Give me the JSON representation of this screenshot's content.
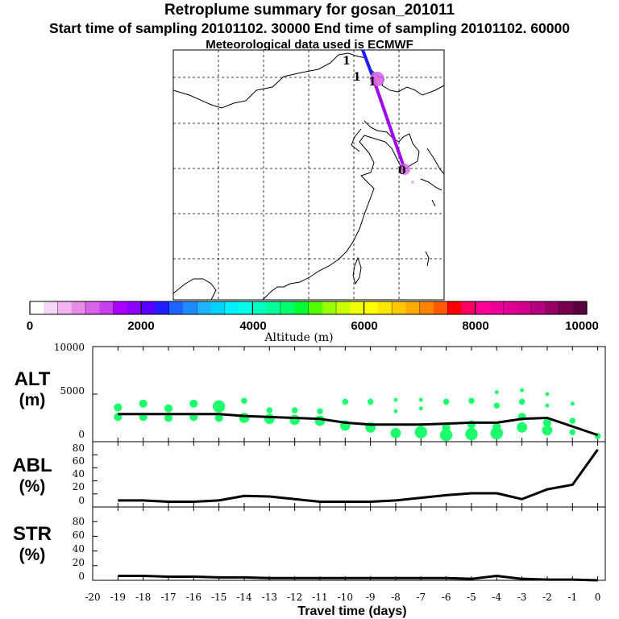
{
  "title": {
    "line1": "Retroplume summary for gosan_201011",
    "line2": "Start time of sampling 20101102. 30000     End time of sampling 20101102. 60000",
    "line3": "Meteorological data used is ECMWF"
  },
  "map": {
    "labels": [
      "1",
      "1",
      "1",
      "0"
    ]
  },
  "colorbar": {
    "ticks": [
      "0",
      "2000",
      "4000",
      "6000",
      "8000",
      "10000"
    ],
    "label": "Altitude (m)",
    "min": 0,
    "max": 10000,
    "colors": [
      "#ffffff",
      "#f6d6f6",
      "#f0b4f0",
      "#e68ce6",
      "#d764e6",
      "#c840f0",
      "#aa00ff",
      "#8c00ff",
      "#5a00ff",
      "#1e1eff",
      "#1e64ff",
      "#1e8cff",
      "#1eb4ff",
      "#00d2ff",
      "#00f0ff",
      "#00ffe6",
      "#00ffbe",
      "#00ff96",
      "#00ff6e",
      "#00ff32",
      "#50ff00",
      "#96ff00",
      "#c8ff00",
      "#f0ff00",
      "#ffff00",
      "#ffe600",
      "#ffc800",
      "#ffaa00",
      "#ff8200",
      "#ff5a00",
      "#ff0000",
      "#ff0064",
      "#ff0096",
      "#f0009b",
      "#e10096",
      "#d2008c",
      "#b40082",
      "#960064",
      "#780050",
      "#5a003c"
    ]
  },
  "chart_data": [
    {
      "type": "line",
      "name": "alt-panel",
      "ylabel": "ALT",
      "yunit": "(m)",
      "ylim": [
        0,
        10000
      ],
      "yticks": [
        "10000",
        "5000",
        "0"
      ],
      "x": [
        -19,
        -18,
        -17,
        -16,
        -15,
        -14,
        -13,
        -12,
        -11,
        -10,
        -9,
        -8,
        -7,
        -6,
        -5,
        -4,
        -3,
        -2,
        -1,
        0
      ],
      "values": [
        2900,
        2900,
        2900,
        2900,
        2900,
        2700,
        2600,
        2500,
        2400,
        2000,
        1800,
        1800,
        1800,
        1900,
        2000,
        2000,
        2400,
        2500,
        1600,
        700
      ],
      "clusters": [
        {
          "x": -19,
          "y": 3600,
          "size": 3
        },
        {
          "x": -19,
          "y": 2600,
          "size": 3
        },
        {
          "x": -18,
          "y": 4000,
          "size": 3
        },
        {
          "x": -18,
          "y": 2600,
          "size": 3
        },
        {
          "x": -17,
          "y": 3500,
          "size": 3
        },
        {
          "x": -17,
          "y": 2500,
          "size": 3
        },
        {
          "x": -16,
          "y": 4000,
          "size": 3
        },
        {
          "x": -16,
          "y": 2600,
          "size": 3
        },
        {
          "x": -15,
          "y": 3700,
          "size": 5
        },
        {
          "x": -15,
          "y": 2500,
          "size": 3
        },
        {
          "x": -14,
          "y": 4300,
          "size": 2
        },
        {
          "x": -14,
          "y": 2500,
          "size": 4
        },
        {
          "x": -13,
          "y": 3300,
          "size": 2
        },
        {
          "x": -13,
          "y": 2400,
          "size": 4
        },
        {
          "x": -12,
          "y": 3300,
          "size": 2
        },
        {
          "x": -12,
          "y": 2300,
          "size": 4
        },
        {
          "x": -11,
          "y": 3200,
          "size": 2
        },
        {
          "x": -11,
          "y": 2200,
          "size": 4
        },
        {
          "x": -10,
          "y": 4200,
          "size": 2
        },
        {
          "x": -10,
          "y": 1700,
          "size": 4
        },
        {
          "x": -9,
          "y": 4200,
          "size": 2
        },
        {
          "x": -9,
          "y": 1500,
          "size": 4
        },
        {
          "x": -8,
          "y": 4400,
          "size": 1
        },
        {
          "x": -8,
          "y": 3200,
          "size": 1
        },
        {
          "x": -8,
          "y": 900,
          "size": 4
        },
        {
          "x": -7,
          "y": 4400,
          "size": 1
        },
        {
          "x": -7,
          "y": 3500,
          "size": 1
        },
        {
          "x": -7,
          "y": 1000,
          "size": 5
        },
        {
          "x": -6,
          "y": 4200,
          "size": 2
        },
        {
          "x": -6,
          "y": 1500,
          "size": 3
        },
        {
          "x": -6,
          "y": 700,
          "size": 5
        },
        {
          "x": -5,
          "y": 4300,
          "size": 2
        },
        {
          "x": -5,
          "y": 1800,
          "size": 3
        },
        {
          "x": -5,
          "y": 800,
          "size": 5
        },
        {
          "x": -4,
          "y": 5200,
          "size": 1
        },
        {
          "x": -4,
          "y": 3800,
          "size": 2
        },
        {
          "x": -4,
          "y": 1600,
          "size": 3
        },
        {
          "x": -4,
          "y": 900,
          "size": 5
        },
        {
          "x": -3,
          "y": 5400,
          "size": 1
        },
        {
          "x": -3,
          "y": 4200,
          "size": 2
        },
        {
          "x": -3,
          "y": 2600,
          "size": 3
        },
        {
          "x": -3,
          "y": 1500,
          "size": 4
        },
        {
          "x": -2,
          "y": 5000,
          "size": 1
        },
        {
          "x": -2,
          "y": 3800,
          "size": 1
        },
        {
          "x": -2,
          "y": 2000,
          "size": 3
        },
        {
          "x": -2,
          "y": 1200,
          "size": 4
        },
        {
          "x": -1,
          "y": 4000,
          "size": 1
        },
        {
          "x": -1,
          "y": 2200,
          "size": 2
        },
        {
          "x": -1,
          "y": 1000,
          "size": 2
        },
        {
          "x": 0,
          "y": 600,
          "size": 2
        }
      ]
    },
    {
      "type": "line",
      "name": "abl-panel",
      "ylabel": "ABL",
      "yunit": "(%)",
      "ylim": [
        0,
        100
      ],
      "yticks": [
        "80",
        "60",
        "40",
        "20",
        "0"
      ],
      "x": [
        -19,
        -18,
        -17,
        -16,
        -15,
        -14,
        -13,
        -12,
        -11,
        -10,
        -9,
        -8,
        -7,
        -6,
        -5,
        -4,
        -3,
        -2,
        -1,
        0
      ],
      "values": [
        10,
        10,
        8,
        8,
        10,
        17,
        16,
        12,
        8,
        8,
        8,
        10,
        14,
        18,
        21,
        21,
        12,
        27,
        34,
        88
      ]
    },
    {
      "type": "line",
      "name": "str-panel",
      "ylabel": "STR",
      "yunit": "(%)",
      "ylim": [
        0,
        100
      ],
      "yticks": [
        "80",
        "60",
        "40",
        "20",
        "0"
      ],
      "xlabel": "Travel time (days)",
      "xticks": [
        "-20",
        "-19",
        "-18",
        "-17",
        "-16",
        "-15",
        "-14",
        "-13",
        "-12",
        "-11",
        "-10",
        "-9",
        "-8",
        "-7",
        "-6",
        "-5",
        "-4",
        "-3",
        "-2",
        "-1",
        "0"
      ],
      "x": [
        -19,
        -18,
        -17,
        -16,
        -15,
        -14,
        -13,
        -12,
        -11,
        -10,
        -9,
        -8,
        -7,
        -6,
        -5,
        -4,
        -3,
        -2,
        -1,
        0
      ],
      "values": [
        6,
        6,
        5,
        5,
        4,
        4,
        3,
        3,
        3,
        3,
        3,
        3,
        3,
        3,
        2,
        6,
        2,
        1,
        1,
        0
      ]
    }
  ]
}
